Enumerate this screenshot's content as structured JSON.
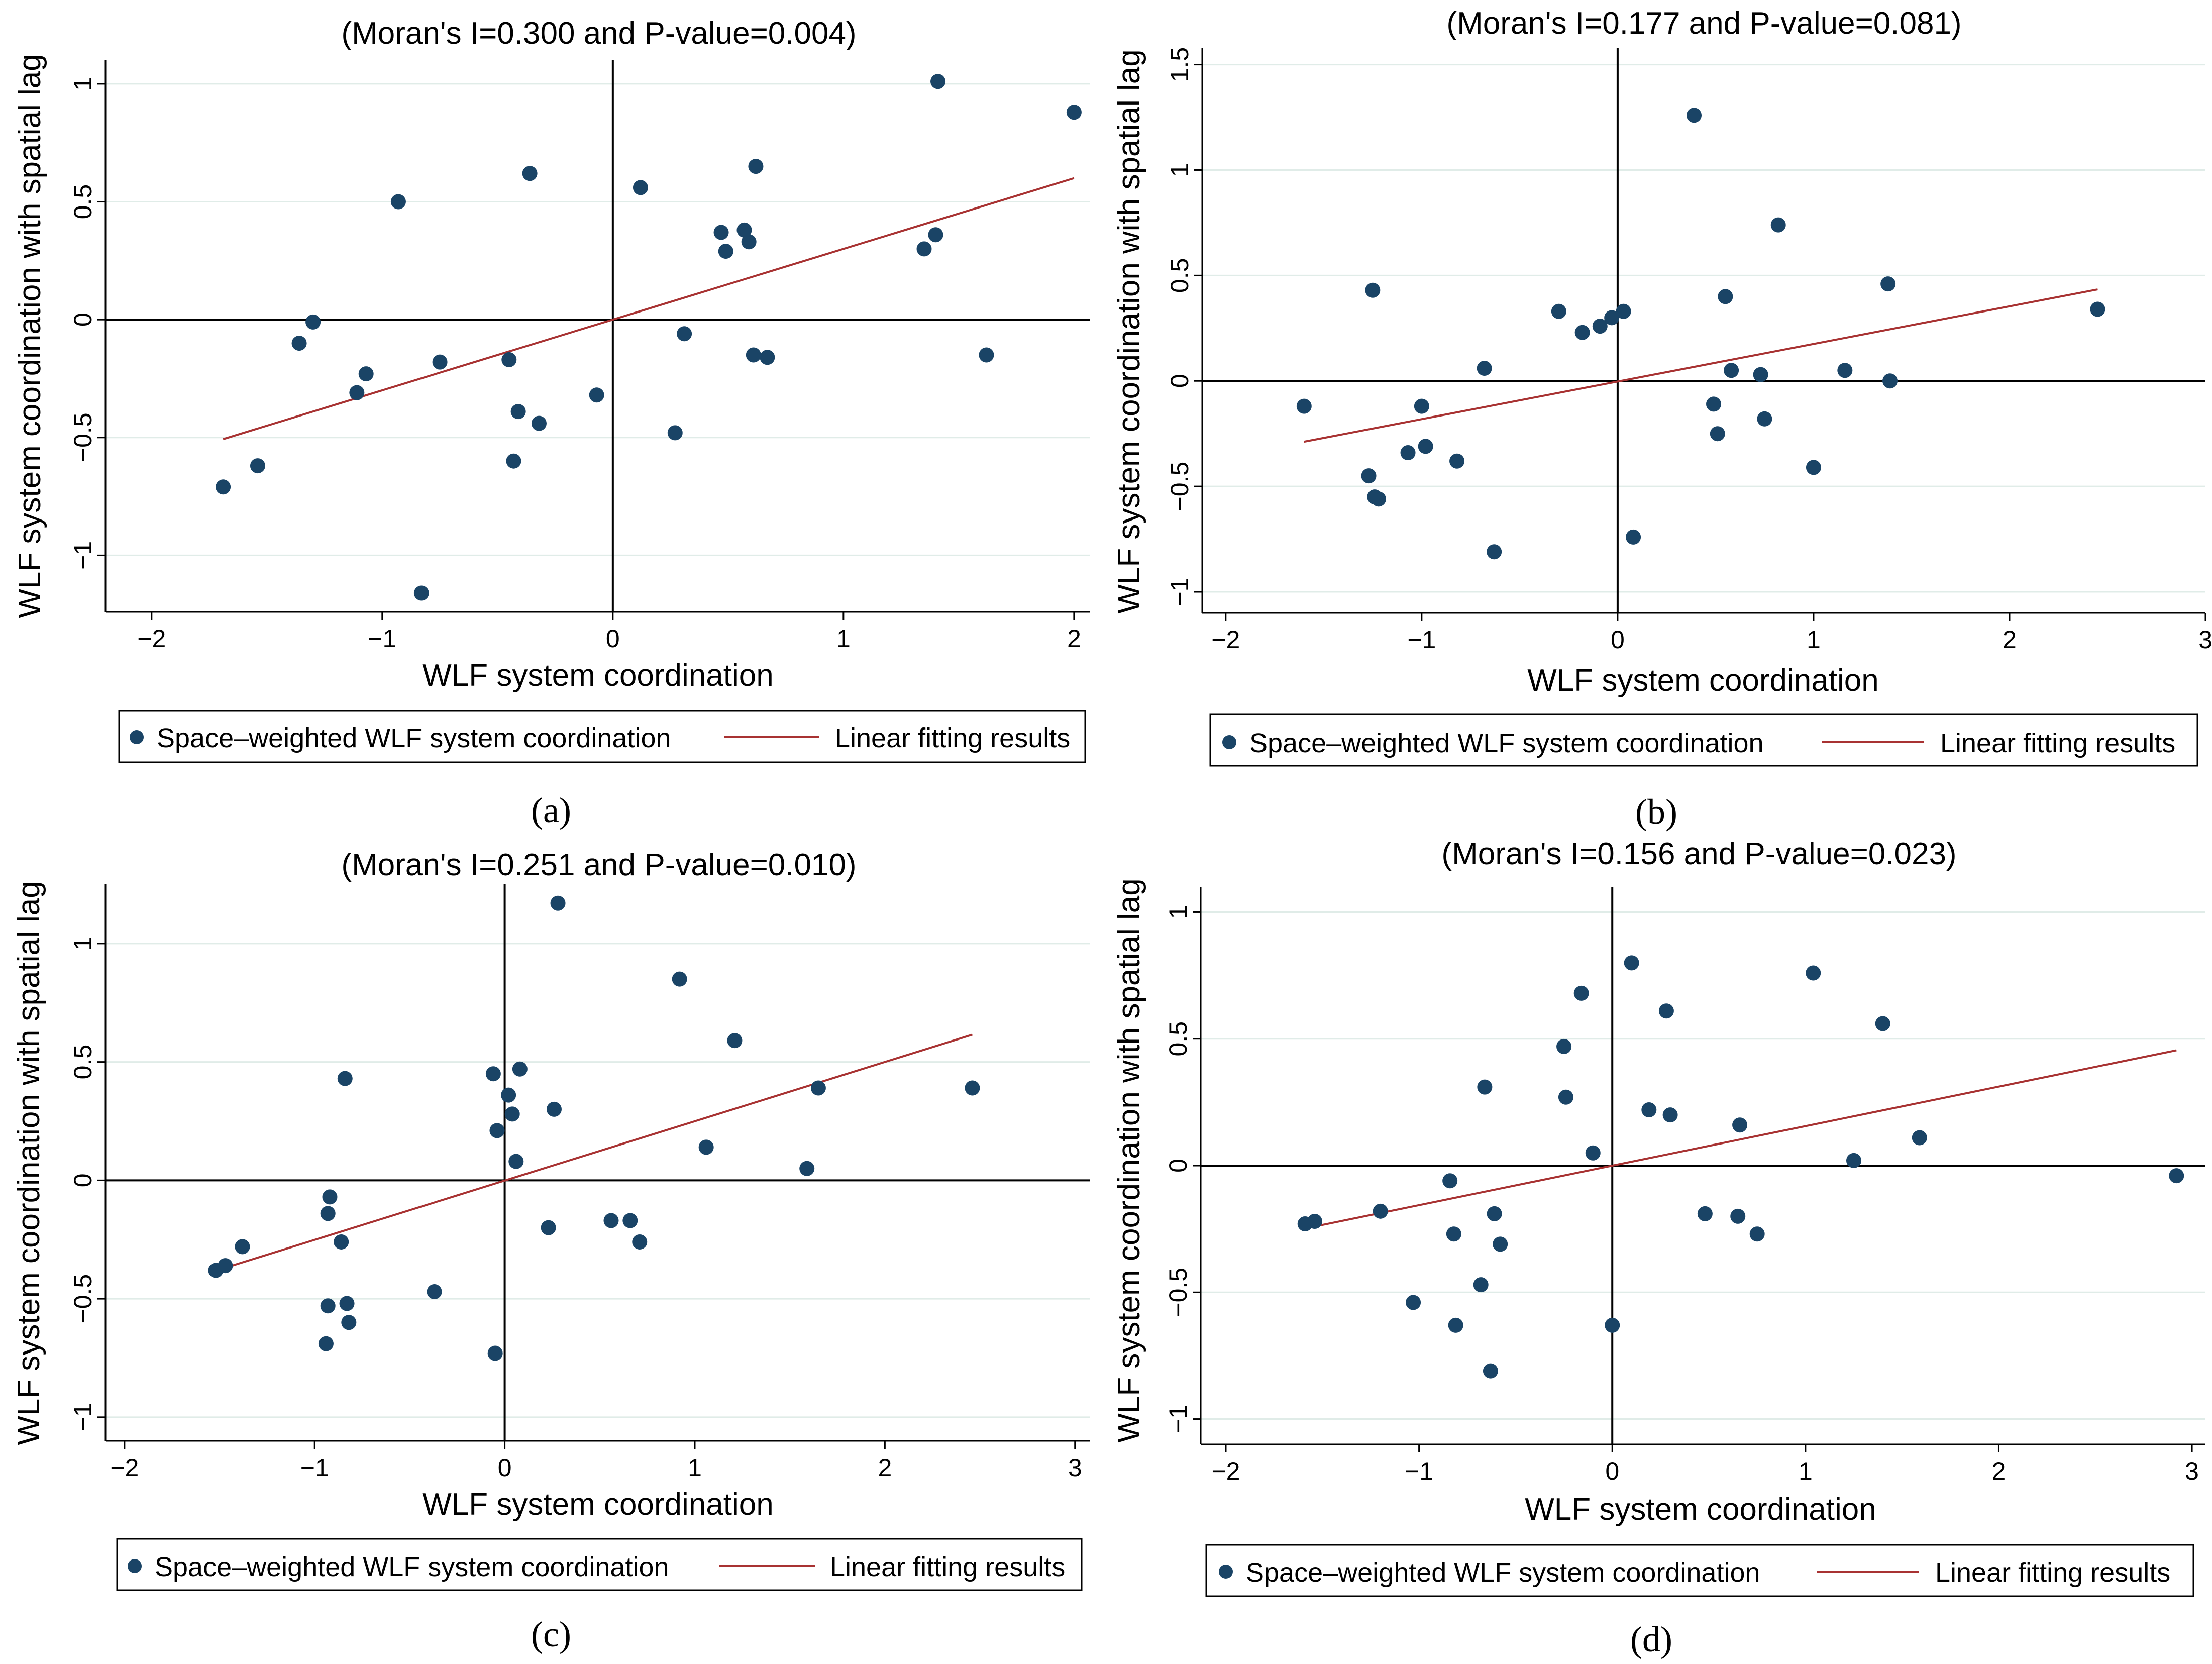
{
  "chart_data": [
    {
      "panel": "a",
      "type": "scatter",
      "title": "(Moran's I=0.300 and P-value=0.004)",
      "xlabel": "WLF system coordination",
      "ylabel": "WLF system coordination with spatial lag",
      "xlim": [
        -2.2,
        2.07
      ],
      "ylim": [
        -1.24,
        1.1
      ],
      "xticks": [
        -2,
        -1,
        0,
        1,
        2
      ],
      "yticks": [
        -1,
        -0.5,
        0,
        0.5,
        1
      ],
      "xtick_labels": [
        "−2",
        "−1",
        "0",
        "1",
        "2"
      ],
      "ytick_labels": [
        "−1",
        "−0.5",
        "0",
        "0.5",
        "1"
      ],
      "grid": true,
      "fit": {
        "x": [
          -1.69,
          2.0
        ],
        "y": [
          -0.507,
          0.6
        ]
      },
      "series": [
        {
          "name": "Space–weighted WLF system coordination",
          "x": [
            -1.69,
            -1.54,
            -1.36,
            -1.3,
            -1.11,
            -1.07,
            -0.93,
            -0.83,
            -0.75,
            -0.45,
            -0.43,
            -0.41,
            -0.36,
            -0.32,
            -0.07,
            0.12,
            0.27,
            0.31,
            0.47,
            0.49,
            0.57,
            0.59,
            0.61,
            0.62,
            0.67,
            1.35,
            1.4,
            1.41,
            1.62,
            2.0
          ],
          "y": [
            -0.71,
            -0.62,
            -0.1,
            -0.01,
            -0.31,
            -0.23,
            0.5,
            -1.16,
            -0.18,
            -0.17,
            -0.6,
            -0.39,
            0.62,
            -0.44,
            -0.32,
            0.56,
            -0.48,
            -0.06,
            0.37,
            0.29,
            0.38,
            0.33,
            -0.15,
            0.65,
            -0.16,
            0.3,
            0.36,
            1.01,
            -0.15,
            0.88
          ]
        }
      ],
      "legend": {
        "position": "bottom",
        "points_label": "Space–weighted WLF system coordination",
        "line_label": "Linear fitting results"
      },
      "caption": "(a)"
    },
    {
      "panel": "b",
      "type": "scatter",
      "title": "(Moran's I=0.177 and P-value=0.081)",
      "xlabel": "WLF system coordination",
      "ylabel": "WLF system coordination with spatial lag",
      "xlim": [
        -2.12,
        3.0
      ],
      "ylim": [
        -1.1,
        1.58
      ],
      "xticks": [
        -2,
        -1,
        0,
        1,
        2,
        3
      ],
      "yticks": [
        -1,
        -0.5,
        0,
        0.5,
        1,
        1.5
      ],
      "xtick_labels": [
        "−2",
        "−1",
        "0",
        "1",
        "2",
        "3"
      ],
      "ytick_labels": [
        "−1",
        "−0.5",
        "0",
        "0.5",
        "1",
        "1.5"
      ],
      "grid": true,
      "fit": {
        "x": [
          -1.6,
          2.45
        ],
        "y": [
          -0.288,
          0.434
        ]
      },
      "series": [
        {
          "name": "Space–weighted WLF system coordination",
          "x": [
            -1.6,
            -1.27,
            -1.25,
            -1.24,
            -1.22,
            -1.07,
            -1.0,
            -0.98,
            -0.82,
            -0.68,
            -0.63,
            -0.3,
            -0.18,
            -0.09,
            -0.03,
            0.03,
            0.08,
            0.39,
            0.49,
            0.51,
            0.55,
            0.58,
            0.73,
            0.75,
            0.82,
            1.0,
            1.16,
            1.38,
            1.39,
            2.45
          ],
          "y": [
            -0.12,
            -0.45,
            0.43,
            -0.55,
            -0.56,
            -0.34,
            -0.12,
            -0.31,
            -0.38,
            0.06,
            -0.81,
            0.33,
            0.23,
            0.26,
            0.3,
            0.33,
            -0.74,
            1.26,
            -0.11,
            -0.25,
            0.4,
            0.05,
            0.03,
            -0.18,
            0.74,
            -0.41,
            0.05,
            0.46,
            0.0,
            0.34
          ]
        }
      ],
      "legend": {
        "position": "bottom",
        "points_label": "Space–weighted WLF system coordination",
        "line_label": "Linear fitting results"
      },
      "caption": "(b)"
    },
    {
      "panel": "c",
      "type": "scatter",
      "title": "(Moran's I=0.251 and P-value=0.010)",
      "xlabel": "WLF system coordination",
      "ylabel": "WLF system coordination with spatial lag",
      "xlim": [
        -2.1,
        3.08
      ],
      "ylim": [
        -1.1,
        1.25
      ],
      "xticks": [
        -2,
        -1,
        0,
        1,
        2,
        3
      ],
      "yticks": [
        -1,
        -0.5,
        0,
        0.5,
        1
      ],
      "xtick_labels": [
        "−2",
        "−1",
        "0",
        "1",
        "2",
        "3"
      ],
      "ytick_labels": [
        "−1",
        "−0.5",
        "0",
        "0.5",
        "1"
      ],
      "grid": true,
      "fit": {
        "x": [
          -1.51,
          2.46
        ],
        "y": [
          -0.379,
          0.615
        ]
      },
      "series": [
        {
          "name": "Space–weighted WLF system coordination",
          "x": [
            -1.52,
            -1.47,
            -1.38,
            -0.94,
            -0.93,
            -0.93,
            -0.92,
            -0.86,
            -0.84,
            -0.83,
            -0.82,
            -0.37,
            -0.06,
            -0.05,
            -0.04,
            0.02,
            0.04,
            0.06,
            0.08,
            0.23,
            0.26,
            0.28,
            0.56,
            0.66,
            0.71,
            0.92,
            1.06,
            1.21,
            1.59,
            1.65,
            2.46
          ],
          "y": [
            -0.38,
            -0.36,
            -0.28,
            -0.69,
            -0.14,
            -0.53,
            -0.07,
            -0.26,
            0.43,
            -0.52,
            -0.6,
            -0.47,
            0.45,
            -0.73,
            0.21,
            0.36,
            0.28,
            0.08,
            0.47,
            -0.2,
            0.3,
            1.17,
            -0.17,
            -0.17,
            -0.26,
            0.85,
            0.14,
            0.59,
            0.05,
            0.39,
            0.39
          ]
        }
      ],
      "legend": {
        "position": "bottom",
        "points_label": "Space–weighted WLF system coordination",
        "line_label": "Linear fitting results"
      },
      "caption": "(c)"
    },
    {
      "panel": "d",
      "type": "scatter",
      "title": "(Moran's I=0.156 and P-value=0.023)",
      "xlabel": "WLF system coordination",
      "ylabel": "WLF system coordination with spatial lag",
      "xlim": [
        -2.13,
        3.07
      ],
      "ylim": [
        -1.1,
        1.1
      ],
      "xticks": [
        -2,
        -1,
        0,
        1,
        2,
        3
      ],
      "yticks": [
        -1,
        -0.5,
        0,
        0.5,
        1
      ],
      "xtick_labels": [
        "−2",
        "−1",
        "0",
        "1",
        "2",
        "3"
      ],
      "ytick_labels": [
        "−1",
        "−0.5",
        "0",
        "0.5",
        "1"
      ],
      "grid": true,
      "fit": {
        "x": [
          -1.59,
          2.92
        ],
        "y": [
          -0.248,
          0.455
        ]
      },
      "series": [
        {
          "name": "Space–weighted WLF system coordination",
          "x": [
            -1.59,
            -1.54,
            -1.2,
            -1.03,
            -0.84,
            -0.82,
            -0.81,
            -0.68,
            -0.66,
            -0.63,
            -0.61,
            -0.58,
            -0.25,
            -0.24,
            -0.16,
            -0.1,
            0.0,
            0.1,
            0.19,
            0.28,
            0.3,
            0.48,
            0.65,
            0.66,
            0.75,
            1.04,
            1.25,
            1.4,
            1.59,
            2.92
          ],
          "y": [
            -0.23,
            -0.22,
            -0.18,
            -0.54,
            -0.06,
            -0.27,
            -0.63,
            -0.47,
            0.31,
            -0.81,
            -0.19,
            -0.31,
            0.47,
            0.27,
            0.68,
            0.05,
            -0.63,
            0.8,
            0.22,
            0.61,
            0.2,
            -0.19,
            -0.2,
            0.16,
            -0.27,
            0.76,
            0.02,
            0.56,
            0.11,
            -0.04
          ]
        }
      ],
      "legend": {
        "position": "bottom",
        "points_label": "Space–weighted WLF system coordination",
        "line_label": "Linear fitting results"
      },
      "caption": "(d)"
    }
  ],
  "colors": {
    "marker": "#1a4466",
    "fit_line": "#a83232",
    "grid": "#e0ece8",
    "axis": "#000000"
  }
}
